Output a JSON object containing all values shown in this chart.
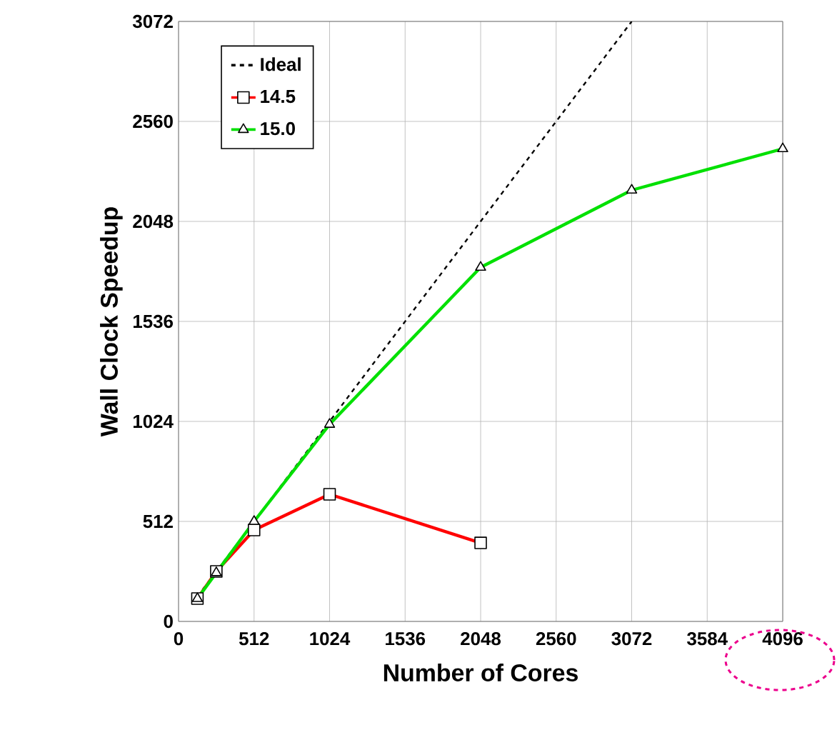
{
  "chart_data": {
    "type": "line",
    "xlabel": "Number of Cores",
    "ylabel": "Wall Clock Speedup",
    "xlim": [
      0,
      4096
    ],
    "ylim": [
      0,
      3072
    ],
    "xticks": [
      0,
      512,
      1024,
      1536,
      2048,
      2560,
      3072,
      3584,
      4096
    ],
    "yticks": [
      0,
      512,
      1024,
      1536,
      2048,
      2560,
      3072
    ],
    "grid": true,
    "legend": "top left",
    "series": [
      {
        "name": "Ideal",
        "color": "#000000",
        "line_style": "dashed",
        "x": [
          128,
          3072
        ],
        "values": [
          128,
          3072
        ]
      },
      {
        "name": "14.5",
        "color": "#ff0000",
        "line_style": "solid",
        "marker": "square",
        "x": [
          128,
          256,
          512,
          1024,
          2048
        ],
        "values": [
          117,
          256,
          468,
          651,
          402
        ]
      },
      {
        "name": "15.0",
        "color": "#00e000",
        "line_style": "solid",
        "marker": "triangle",
        "x": [
          128,
          256,
          512,
          1024,
          2048,
          3072,
          4096
        ],
        "values": [
          117,
          249,
          512,
          1009,
          1813,
          2208,
          2420
        ]
      }
    ]
  }
}
